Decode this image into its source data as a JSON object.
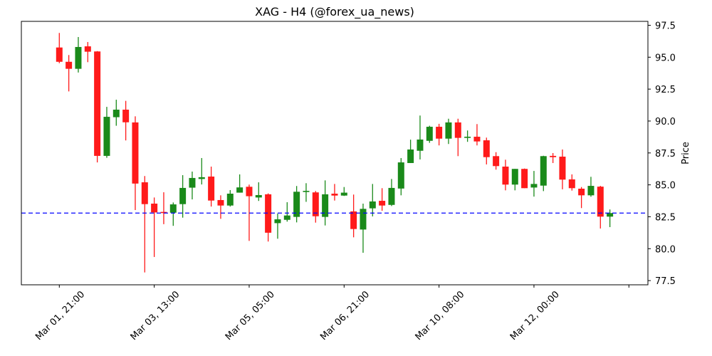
{
  "chart_data": {
    "type": "candlestick",
    "title": "XAG - H4 (@forex_ua_news)",
    "xlabel": "",
    "ylabel": "Price",
    "ylim": [
      77.3,
      97.8
    ],
    "y_axis_position": "right",
    "grid": false,
    "legend": null,
    "y_ticks": [
      97.5,
      95.0,
      92.5,
      90.0,
      87.5,
      85.0,
      82.5,
      80.0,
      77.5
    ],
    "y_tick_labels": [
      "97.5",
      "95.0",
      "92.5",
      "90.0",
      "87.5",
      "85.0",
      "82.5",
      "80.0",
      "77.5"
    ],
    "x_ticks_index": [
      0,
      10,
      20,
      30,
      40,
      50,
      60
    ],
    "x_tick_labels": [
      "Mar 01, 21:00",
      "Mar 03, 13:00",
      "Mar 05, 05:00",
      "Mar 06, 21:00",
      "Mar 10, 08:00",
      "Mar 12, 00:00",
      ""
    ],
    "colors": {
      "up": "#1a8a1a",
      "down": "#ff1a1a",
      "reference_line": "#0000ff"
    },
    "reference_line": {
      "value": 82.79,
      "style": "dashed",
      "color": "#0000ff"
    },
    "candles": [
      {
        "o": 95.76,
        "h": 96.9,
        "l": 94.53,
        "c": 94.64
      },
      {
        "o": 94.64,
        "h": 95.17,
        "l": 92.32,
        "c": 94.09
      },
      {
        "o": 94.09,
        "h": 96.58,
        "l": 93.8,
        "c": 95.8
      },
      {
        "o": 95.85,
        "h": 96.19,
        "l": 94.61,
        "c": 95.43
      },
      {
        "o": 95.45,
        "h": 95.48,
        "l": 86.76,
        "c": 87.27
      },
      {
        "o": 87.27,
        "h": 91.11,
        "l": 87.12,
        "c": 90.33
      },
      {
        "o": 90.3,
        "h": 91.67,
        "l": 89.63,
        "c": 90.89
      },
      {
        "o": 90.89,
        "h": 91.58,
        "l": 88.48,
        "c": 89.9
      },
      {
        "o": 89.89,
        "h": 90.37,
        "l": 83.03,
        "c": 85.1
      },
      {
        "o": 85.2,
        "h": 85.69,
        "l": 78.14,
        "c": 83.49
      },
      {
        "o": 83.53,
        "h": 84.01,
        "l": 79.35,
        "c": 82.84
      },
      {
        "o": 82.88,
        "h": 84.42,
        "l": 81.92,
        "c": 82.79
      },
      {
        "o": 82.82,
        "h": 83.62,
        "l": 81.79,
        "c": 83.47
      },
      {
        "o": 83.49,
        "h": 85.76,
        "l": 82.43,
        "c": 84.76
      },
      {
        "o": 84.78,
        "h": 86.04,
        "l": 83.86,
        "c": 85.54
      },
      {
        "o": 85.46,
        "h": 87.1,
        "l": 85.03,
        "c": 85.6
      },
      {
        "o": 85.65,
        "h": 86.43,
        "l": 83.3,
        "c": 83.77
      },
      {
        "o": 83.81,
        "h": 84.18,
        "l": 82.34,
        "c": 83.38
      },
      {
        "o": 83.38,
        "h": 84.59,
        "l": 83.3,
        "c": 84.31
      },
      {
        "o": 84.39,
        "h": 85.82,
        "l": 84.39,
        "c": 84.8
      },
      {
        "o": 84.85,
        "h": 85.02,
        "l": 80.61,
        "c": 84.11
      },
      {
        "o": 84.01,
        "h": 85.2,
        "l": 83.74,
        "c": 84.2
      },
      {
        "o": 84.26,
        "h": 84.33,
        "l": 80.56,
        "c": 81.25
      },
      {
        "o": 82.0,
        "h": 82.75,
        "l": 80.78,
        "c": 82.3
      },
      {
        "o": 82.26,
        "h": 83.64,
        "l": 82.12,
        "c": 82.6
      },
      {
        "o": 82.49,
        "h": 84.91,
        "l": 82.06,
        "c": 84.46
      },
      {
        "o": 84.44,
        "h": 85.13,
        "l": 83.67,
        "c": 84.53
      },
      {
        "o": 84.41,
        "h": 84.52,
        "l": 82.04,
        "c": 82.54
      },
      {
        "o": 82.49,
        "h": 85.35,
        "l": 81.82,
        "c": 84.26
      },
      {
        "o": 84.31,
        "h": 85.07,
        "l": 83.77,
        "c": 84.16
      },
      {
        "o": 84.16,
        "h": 84.83,
        "l": 84.13,
        "c": 84.39
      },
      {
        "o": 82.92,
        "h": 84.24,
        "l": 80.89,
        "c": 81.54
      },
      {
        "o": 81.5,
        "h": 83.53,
        "l": 79.68,
        "c": 83.12
      },
      {
        "o": 83.16,
        "h": 85.07,
        "l": 82.53,
        "c": 83.7
      },
      {
        "o": 83.75,
        "h": 84.74,
        "l": 82.97,
        "c": 83.38
      },
      {
        "o": 83.43,
        "h": 85.46,
        "l": 83.34,
        "c": 84.76
      },
      {
        "o": 84.71,
        "h": 87.1,
        "l": 84.18,
        "c": 86.76
      },
      {
        "o": 86.71,
        "h": 88.54,
        "l": 86.71,
        "c": 87.77
      },
      {
        "o": 87.67,
        "h": 90.43,
        "l": 86.99,
        "c": 88.55
      },
      {
        "o": 88.45,
        "h": 89.63,
        "l": 88.29,
        "c": 89.55
      },
      {
        "o": 89.55,
        "h": 89.78,
        "l": 88.09,
        "c": 88.62
      },
      {
        "o": 88.62,
        "h": 90.18,
        "l": 88.2,
        "c": 89.89
      },
      {
        "o": 89.89,
        "h": 90.18,
        "l": 87.25,
        "c": 88.68
      },
      {
        "o": 88.68,
        "h": 89.26,
        "l": 88.37,
        "c": 88.77
      },
      {
        "o": 88.77,
        "h": 89.76,
        "l": 88.09,
        "c": 88.4
      },
      {
        "o": 88.49,
        "h": 88.7,
        "l": 86.6,
        "c": 87.17
      },
      {
        "o": 87.25,
        "h": 87.56,
        "l": 86.19,
        "c": 86.47
      },
      {
        "o": 86.43,
        "h": 86.97,
        "l": 84.57,
        "c": 85.02
      },
      {
        "o": 85.02,
        "h": 86.25,
        "l": 84.57,
        "c": 86.25
      },
      {
        "o": 86.25,
        "h": 86.28,
        "l": 84.74,
        "c": 84.74
      },
      {
        "o": 84.79,
        "h": 86.09,
        "l": 84.08,
        "c": 85.07
      },
      {
        "o": 84.94,
        "h": 87.28,
        "l": 84.51,
        "c": 87.25
      },
      {
        "o": 87.27,
        "h": 87.49,
        "l": 86.71,
        "c": 87.17
      },
      {
        "o": 87.21,
        "h": 87.77,
        "l": 84.65,
        "c": 85.41
      },
      {
        "o": 85.43,
        "h": 85.82,
        "l": 84.55,
        "c": 84.74
      },
      {
        "o": 84.7,
        "h": 84.83,
        "l": 83.18,
        "c": 84.18
      },
      {
        "o": 84.18,
        "h": 85.63,
        "l": 84.07,
        "c": 84.92
      },
      {
        "o": 84.86,
        "h": 84.92,
        "l": 81.58,
        "c": 82.51
      },
      {
        "o": 82.51,
        "h": 83.07,
        "l": 81.69,
        "c": 82.79
      }
    ]
  }
}
